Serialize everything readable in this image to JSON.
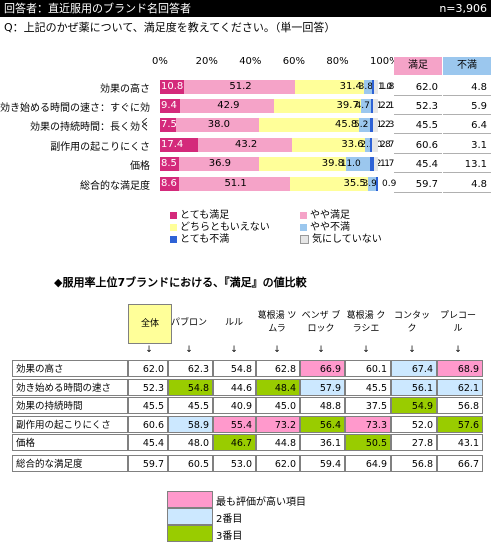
{
  "header": {
    "respondents": "回答者：直近服用のブランド名回答者",
    "n": "n=3,906",
    "question": "Q：上記のかぜ薬について、満足度を教えてください。（単一回答）"
  },
  "colors": {
    "very_satisfied": "#d42a7b",
    "somewhat_satisfied": "#f5a3c8",
    "neutral": "#ffff99",
    "somewhat_dissatisfied": "#9bc7ee",
    "very_dissatisfied": "#2e62d6",
    "dont_care": "#e6e6e6",
    "highest": "#ff99cc",
    "second": "#cce8ff",
    "third": "#99cc00"
  },
  "chart_data": [
    {
      "type": "bar",
      "stacked": true,
      "orientation": "horizontal",
      "x_ticks": [
        "0%",
        "20%",
        "40%",
        "60%",
        "80%",
        "100%"
      ],
      "xlim": [
        0,
        100
      ],
      "categories": [
        "効果の高さ",
        "効き始める時間の速さ：すぐに効く",
        "効果の持続時間：長く効く",
        "副作用の起こりにくさ",
        "価格",
        "総合的な満足度"
      ],
      "series": [
        {
          "name": "とても満足",
          "values": [
            10.8,
            9.4,
            7.5,
            17.4,
            8.5,
            8.6
          ]
        },
        {
          "name": "やや満足",
          "values": [
            51.2,
            42.9,
            38.0,
            43.2,
            36.9,
            51.1
          ]
        },
        {
          "name": "どちらともいえない",
          "values": [
            31.4,
            39.7,
            45.8,
            33.6,
            39.8,
            35.5
          ]
        },
        {
          "name": "やや不満",
          "values": [
            3.8,
            4.7,
            5.2,
            2.3,
            11.0,
            3.9
          ]
        },
        {
          "name": "とても不満",
          "values": [
            1.0,
            1.2,
            1.2,
            0.8,
            2.1,
            0.9
          ]
        },
        {
          "name": "気にしていない",
          "values": [
            1.8,
            2.1,
            2.3,
            2.7,
            1.7,
            0.0
          ]
        }
      ],
      "labels": [
        [
          "10.8",
          "51.2",
          "31.4",
          "3.8",
          "1.0",
          "1.8"
        ],
        [
          "9.4",
          "42.9",
          "39.7",
          "4.7",
          "1.2",
          "2.1"
        ],
        [
          "7.5",
          "38.0",
          "45.8",
          "5.2",
          "1.2",
          "2.3"
        ],
        [
          "17.4",
          "43.2",
          "33.6",
          "2.3",
          "0.8",
          "2.7"
        ],
        [
          "8.5",
          "36.9",
          "39.8",
          "11.0",
          "2.1",
          "1.7"
        ],
        [
          "8.6",
          "51.1",
          "35.5",
          "3.9",
          "0.9",
          ""
        ]
      ],
      "summary_headers": [
        "満足",
        "不満"
      ],
      "summary": [
        [
          "62.0",
          "4.8"
        ],
        [
          "52.3",
          "5.9"
        ],
        [
          "45.5",
          "6.4"
        ],
        [
          "60.6",
          "3.1"
        ],
        [
          "45.4",
          "13.1"
        ],
        [
          "59.7",
          "4.8"
        ]
      ]
    },
    {
      "type": "table",
      "title": "◆服用率上位7ブランドにおける、『満足』の値比較",
      "columns": [
        "全体",
        "パブロン",
        "ルル",
        "葛根湯 ツムラ",
        "ベンザ ブロック",
        "葛根湯 クラシエ",
        "コンタック",
        "プレコール"
      ],
      "arrows": [
        "↓",
        "↓",
        "↓",
        "↓",
        "↓",
        "↓",
        "↓",
        "↓"
      ],
      "rows": [
        {
          "label": "効果の高さ",
          "values": [
            "62.0",
            "62.3",
            "54.8",
            "62.8",
            "66.9",
            "60.1",
            "67.4",
            "68.9"
          ],
          "rank": [
            0,
            0,
            0,
            0,
            1,
            0,
            2,
            1
          ]
        },
        {
          "label": "効き始める時間の速さ",
          "values": [
            "52.3",
            "54.8",
            "44.6",
            "48.4",
            "57.9",
            "45.5",
            "56.1",
            "62.1"
          ],
          "rank": [
            0,
            3,
            0,
            3,
            2,
            0,
            2,
            2
          ]
        },
        {
          "label": "効果の持続時間",
          "values": [
            "45.5",
            "45.5",
            "40.9",
            "45.0",
            "48.8",
            "37.5",
            "54.9",
            "56.8"
          ],
          "rank": [
            0,
            0,
            0,
            0,
            0,
            0,
            3,
            0
          ]
        },
        {
          "label": "副作用の起こりにくさ",
          "values": [
            "60.6",
            "58.9",
            "55.4",
            "73.2",
            "56.4",
            "73.3",
            "52.0",
            "57.6"
          ],
          "rank": [
            0,
            2,
            1,
            1,
            3,
            1,
            0,
            3
          ]
        },
        {
          "label": "価格",
          "values": [
            "45.4",
            "48.0",
            "46.7",
            "44.8",
            "36.1",
            "50.5",
            "27.8",
            "43.1"
          ],
          "rank": [
            0,
            0,
            3,
            0,
            0,
            3,
            0,
            0
          ]
        },
        {
          "label": "総合的な満足度",
          "values": [
            "59.7",
            "60.5",
            "53.0",
            "62.0",
            "59.4",
            "64.9",
            "56.8",
            "66.7"
          ],
          "rank": [
            0,
            0,
            0,
            0,
            0,
            0,
            0,
            0
          ]
        }
      ],
      "legend": [
        "最も評価が高い項目",
        "2番目",
        "3番目"
      ]
    }
  ]
}
